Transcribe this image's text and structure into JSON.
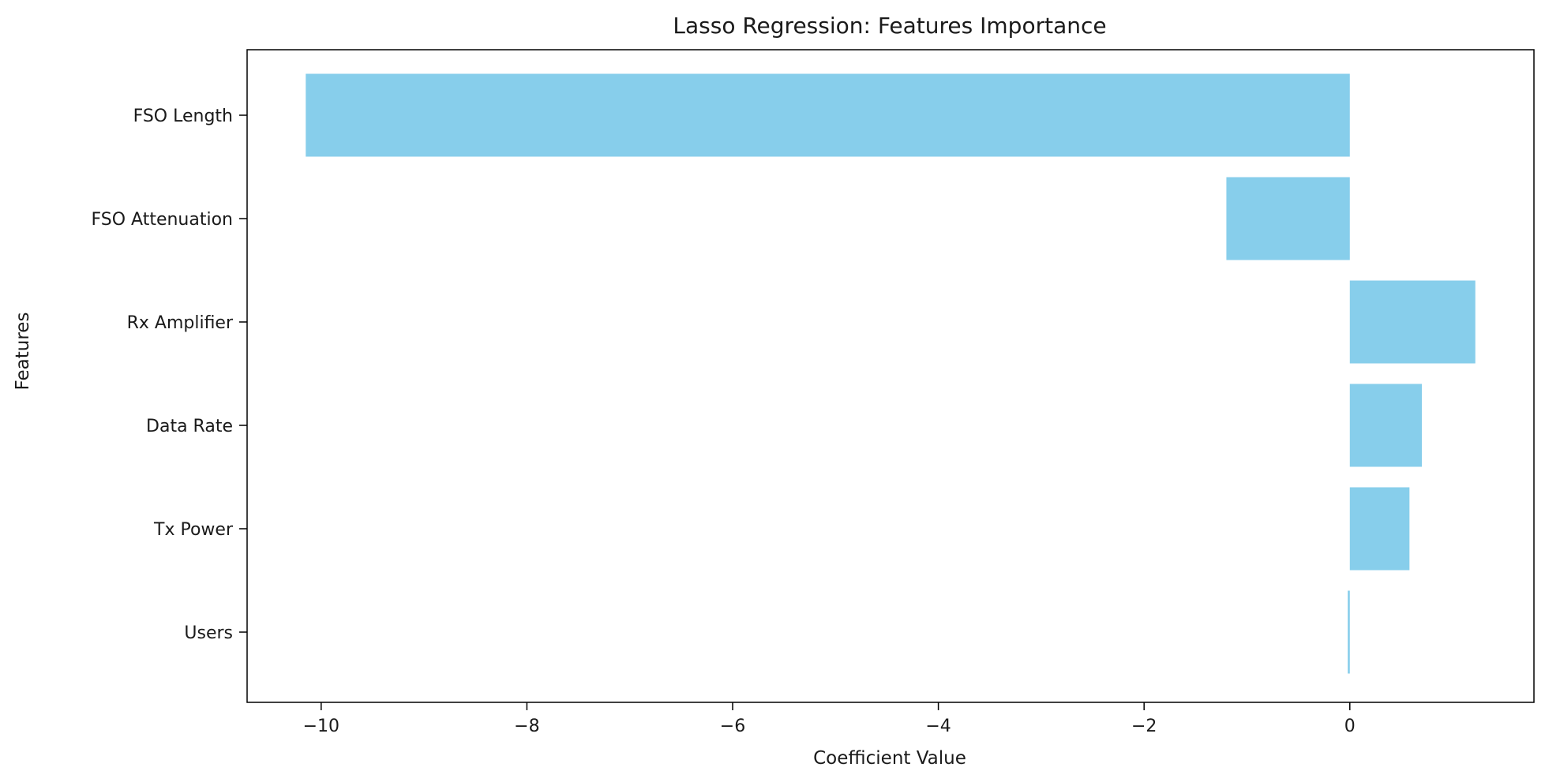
{
  "chart_data": {
    "type": "bar",
    "orientation": "horizontal",
    "title": "Lasso Regression: Features Importance",
    "xlabel": "Coefficient Value",
    "ylabel": "Features",
    "categories": [
      "FSO Length",
      "FSO Attenuation",
      "Rx Amplifier",
      "Data Rate",
      "Tx Power",
      "Users"
    ],
    "values": [
      -10.15,
      -1.2,
      1.22,
      0.7,
      0.58,
      -0.02
    ],
    "xlim": [
      -10.72,
      1.79
    ],
    "xticks": [
      -10,
      -8,
      -6,
      -4,
      -2,
      0
    ],
    "xtick_labels": [
      "−10",
      "−8",
      "−6",
      "−4",
      "−2",
      "0"
    ],
    "bar_color": "#87ceeb",
    "grid": false,
    "legend": "none"
  }
}
